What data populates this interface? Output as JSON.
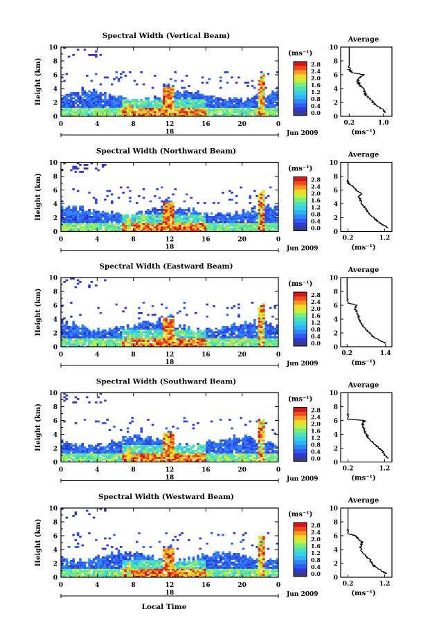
{
  "figure": {
    "xlabel_global": "Local Time",
    "date_label": "Jun 2009",
    "day_label": "18",
    "colorbar_unit": "(ms⁻¹)",
    "colorbar_ticks": [
      "0.0",
      "0.4",
      "0.8",
      "1.2",
      "1.6",
      "2.0",
      "2.4",
      "2.8"
    ],
    "colorbar_colors": [
      "#3a3c7e",
      "#2f38d6",
      "#2f5cf0",
      "#2f88f6",
      "#2fb4f6",
      "#38d0e6",
      "#4ee0b8",
      "#7aee7a",
      "#c8f038",
      "#f6d82a",
      "#f69a24",
      "#f04a1e",
      "#d4161a"
    ],
    "avg_title": "Average",
    "avg_xlabel": "(ms⁻¹)"
  },
  "chart_data": [
    {
      "type": "heatmap",
      "title": "Spectral Width (Vertical Beam)",
      "ylabel": "Height (km)",
      "xticks": [
        "0",
        "4",
        "8",
        "12",
        "16",
        "20",
        "0"
      ],
      "yticks": [
        "0",
        "2",
        "4",
        "6",
        "8",
        "10"
      ],
      "xlim": [
        0,
        24
      ],
      "ylim": [
        0,
        10
      ],
      "units": "ms^-1",
      "clim": [
        0.0,
        2.8
      ],
      "average": {
        "title": "Average",
        "xticks": [
          "0.2",
          "1.0"
        ],
        "xlim": [
          0.0,
          1.2
        ],
        "yticks": [
          "0",
          "2",
          "4",
          "6",
          "8",
          "10"
        ],
        "height_km": [
          0.5,
          1.0,
          1.5,
          2.0,
          2.5,
          3.0,
          3.5,
          4.0,
          4.5,
          5.0,
          5.5,
          6.0,
          6.3,
          6.8,
          7.5
        ],
        "width_ms": [
          1.05,
          1.0,
          0.85,
          0.75,
          0.7,
          0.6,
          0.55,
          0.55,
          0.45,
          0.4,
          0.42,
          0.55,
          0.25,
          0.2,
          0.2
        ]
      }
    },
    {
      "type": "heatmap",
      "title": "Spectral Width (Northward Beam)",
      "ylabel": "Height (km)",
      "xticks": [
        "0",
        "4",
        "8",
        "12",
        "16",
        "20",
        "0"
      ],
      "yticks": [
        "0",
        "2",
        "4",
        "6",
        "8",
        "10"
      ],
      "xlim": [
        0,
        24
      ],
      "ylim": [
        0,
        10
      ],
      "units": "ms^-1",
      "clim": [
        0.0,
        2.8
      ],
      "average": {
        "title": "Average",
        "xticks": [
          "0.2",
          "1.2"
        ],
        "xlim": [
          0.0,
          1.4
        ],
        "yticks": [
          "0",
          "2",
          "4",
          "6",
          "8",
          "10"
        ],
        "height_km": [
          0.5,
          1.0,
          1.5,
          2.0,
          2.5,
          3.0,
          3.5,
          4.0,
          4.5,
          5.0,
          5.5,
          6.0,
          6.5,
          7.0,
          7.5
        ],
        "width_ms": [
          1.3,
          1.15,
          1.0,
          0.9,
          0.8,
          0.72,
          0.65,
          0.58,
          0.55,
          0.5,
          0.58,
          0.42,
          0.35,
          0.2,
          0.2
        ]
      }
    },
    {
      "type": "heatmap",
      "title": "Spectral Width (Eastward Beam)",
      "ylabel": "Height (km)",
      "xticks": [
        "0",
        "4",
        "8",
        "12",
        "16",
        "20",
        "0"
      ],
      "yticks": [
        "0",
        "2",
        "4",
        "6",
        "8",
        "10"
      ],
      "xlim": [
        0,
        24
      ],
      "ylim": [
        0,
        10
      ],
      "units": "ms^-1",
      "clim": [
        0.0,
        2.8
      ],
      "average": {
        "title": "Average",
        "xticks": [
          "0.2",
          "1.4"
        ],
        "xlim": [
          0.0,
          1.6
        ],
        "yticks": [
          "0",
          "2",
          "4",
          "6",
          "8",
          "10"
        ],
        "height_km": [
          0.5,
          1.0,
          1.5,
          2.0,
          2.5,
          3.0,
          3.5,
          4.0,
          4.5,
          5.0,
          5.5,
          6.0,
          6.3,
          7.0
        ],
        "width_ms": [
          1.4,
          1.2,
          1.0,
          0.9,
          0.78,
          0.7,
          0.62,
          0.58,
          0.55,
          0.5,
          0.45,
          0.5,
          0.25,
          0.2
        ]
      }
    },
    {
      "type": "heatmap",
      "title": "Spectral Width (Southward Beam)",
      "ylabel": "Height (km)",
      "xticks": [
        "0",
        "4",
        "8",
        "12",
        "16",
        "20",
        "0"
      ],
      "yticks": [
        "0",
        "2",
        "4",
        "6",
        "8",
        "10"
      ],
      "xlim": [
        0,
        24
      ],
      "ylim": [
        0,
        10
      ],
      "units": "ms^-1",
      "clim": [
        0.0,
        2.8
      ],
      "average": {
        "title": "Average",
        "xticks": [
          "0.2",
          "1.2"
        ],
        "xlim": [
          0.0,
          1.4
        ],
        "yticks": [
          "0",
          "2",
          "4",
          "6",
          "8",
          "10"
        ],
        "height_km": [
          0.5,
          1.0,
          1.5,
          2.0,
          2.5,
          3.0,
          3.5,
          4.0,
          4.5,
          5.0,
          5.5,
          6.0,
          6.2,
          7.0
        ],
        "width_ms": [
          1.3,
          1.2,
          1.15,
          1.05,
          0.95,
          0.85,
          0.75,
          0.7,
          0.65,
          0.62,
          0.6,
          0.65,
          0.2,
          0.2
        ]
      }
    },
    {
      "type": "heatmap",
      "title": "Spectral Width (Westward Beam)",
      "ylabel": "Height (km)",
      "xticks": [
        "0",
        "4",
        "8",
        "12",
        "16",
        "20",
        "0"
      ],
      "yticks": [
        "0",
        "2",
        "4",
        "6",
        "8",
        "10"
      ],
      "xlim": [
        0,
        24
      ],
      "ylim": [
        0,
        10
      ],
      "units": "ms^-1",
      "clim": [
        0.0,
        2.8
      ],
      "average": {
        "title": "Average",
        "xticks": [
          "0.2",
          "1.2"
        ],
        "xlim": [
          0.0,
          1.4
        ],
        "yticks": [
          "0",
          "2",
          "4",
          "6",
          "8",
          "10"
        ],
        "height_km": [
          0.5,
          1.0,
          1.5,
          2.0,
          2.5,
          3.0,
          3.5,
          4.0,
          4.5,
          5.0,
          5.5,
          6.0,
          6.3,
          7.0
        ],
        "width_ms": [
          1.25,
          1.1,
          0.95,
          0.85,
          0.8,
          0.7,
          0.6,
          0.55,
          0.55,
          0.6,
          0.5,
          0.4,
          0.2,
          0.2
        ]
      }
    }
  ]
}
